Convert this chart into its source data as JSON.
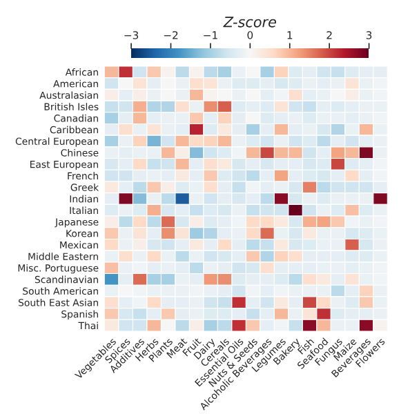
{
  "chart_data": {
    "type": "heatmap",
    "clabel": "Z-score",
    "clim": [
      -3,
      3
    ],
    "cticks": [
      {
        "value": -3,
        "label": "−3"
      },
      {
        "value": -2,
        "label": "−2"
      },
      {
        "value": -1,
        "label": "−1"
      },
      0,
      1,
      2,
      3
    ],
    "categories": [
      "Vegetables",
      "Spices",
      "Additives",
      "Herbs",
      "Plants",
      "Meat",
      "Fruit",
      "Dairy",
      "Cereals",
      "Essential Oils",
      "Nuts & Seeds",
      "Alcoholic Beverages",
      "Legumes",
      "Bakery",
      "Fish",
      "Seafood",
      "Fungus",
      "Maize",
      "Beverages",
      "Flowers"
    ],
    "y_categories": [
      "African",
      "American",
      "Australasian",
      "British Isles",
      "Canadian",
      "Caribbean",
      "Central European",
      "Chinese",
      "East European",
      "French",
      "Greek",
      "Indian",
      "Italian",
      "Japanese",
      "Korean",
      "Mexican",
      "Middle Eastern",
      "Misc. Portuguese",
      "Scandinavian",
      "South American",
      "South East Asian",
      "Spanish",
      "Thai"
    ],
    "cells": [
      [
        1.0,
        2.2,
        -0.6,
        0.8,
        0.1,
        -0.8,
        0.1,
        -0.8,
        -1.0,
        -0.2,
        0,
        -1.0,
        0.7,
        -0.4,
        -0.3,
        -0.6,
        -0.7,
        -0.4,
        -0.3,
        -0.3
      ],
      [
        -0.6,
        0,
        0.4,
        -0.3,
        0,
        -0.2,
        0.5,
        0.4,
        -0.2,
        -0.4,
        -0.4,
        -0.3,
        -0.5,
        -0.4,
        -0.2,
        -0.3,
        -0.2,
        0.4,
        -0.2,
        -0.1
      ],
      [
        0.2,
        -0.3,
        0.2,
        -0.2,
        0,
        -0.2,
        1.0,
        0.1,
        0,
        -0.2,
        0,
        -0.3,
        -0.1,
        0.5,
        -0.3,
        -0.2,
        0,
        0.2,
        -0.2,
        -0.1
      ],
      [
        -0.7,
        -0.6,
        1.1,
        -0.9,
        -0.9,
        0.5,
        -0.2,
        1.4,
        1.8,
        -0.4,
        -0.3,
        -0.4,
        0.4,
        -0.6,
        -0.7,
        -0.3,
        -0.4,
        -0.3,
        -0.2,
        -0.2
      ],
      [
        -1.0,
        -0.3,
        1.0,
        -0.3,
        -0.2,
        -0.2,
        0.8,
        -0.3,
        0.7,
        -0.3,
        0,
        -0.4,
        -0.3,
        -0.2,
        -0.4,
        -0.2,
        -0.2,
        -0.3,
        -0.2,
        -0.1
      ],
      [
        -0.3,
        0.5,
        -0.2,
        0.4,
        -0.2,
        -0.3,
        2.3,
        -0.4,
        0.3,
        -0.3,
        -1.0,
        -0.3,
        1.0,
        -0.3,
        -0.2,
        -0.5,
        -0.9,
        -0.2,
        1.0,
        -0.2
      ],
      [
        -1.0,
        -0.2,
        0.7,
        -1.4,
        -0.6,
        1.0,
        0.6,
        0.7,
        1.0,
        -0.2,
        -0.4,
        -0.6,
        -0.2,
        -0.6,
        -0.4,
        -0.8,
        -0.3,
        -0.6,
        -0.3,
        -0.2
      ],
      [
        -0.2,
        -0.3,
        -0.2,
        -0.2,
        1.0,
        0.2,
        -1.3,
        -0.6,
        -0.4,
        -0.1,
        1.0,
        2.0,
        1.0,
        1.0,
        -0.6,
        -0.3,
        1.2,
        1.0,
        2.8,
        -0.2
      ],
      [
        -0.5,
        -0.3,
        0.6,
        -0.7,
        -0.6,
        1.0,
        -0.3,
        0.5,
        0.3,
        -0.5,
        -0.3,
        -0.5,
        -0.3,
        -0.3,
        -0.5,
        -0.4,
        2.0,
        -0.4,
        -0.3,
        -0.1
      ],
      [
        -0.6,
        -0.6,
        -0.3,
        -0.2,
        -0.3,
        0.3,
        -0.3,
        0.8,
        -0.4,
        -0.6,
        -0.8,
        -0.3,
        1.2,
        -0.3,
        -0.4,
        -0.5,
        -0.3,
        0.6,
        -0.3,
        -0.1
      ],
      [
        0.3,
        -0.3,
        -0.8,
        0.8,
        0.2,
        -0.4,
        -0.2,
        0.5,
        -0.3,
        -0.7,
        -0.1,
        -0.3,
        -0.2,
        -0.5,
        1.5,
        -0.8,
        -0.6,
        -0.6,
        -0.6,
        -0.3
      ],
      [
        -0.3,
        2.8,
        -1.3,
        -0.2,
        -0.8,
        -2.5,
        -0.2,
        -0.6,
        -0.3,
        -0.5,
        -0.3,
        -0.8,
        2.7,
        -0.5,
        -0.2,
        -0.4,
        -0.2,
        -0.2,
        -0.2,
        2.8
      ],
      [
        -0.4,
        -0.2,
        -0.4,
        1.1,
        -0.5,
        -0.3,
        -0.7,
        -0.4,
        -0.5,
        -0.2,
        -0.7,
        -0.6,
        -0.6,
        3.0,
        -0.6,
        -0.2,
        -0.4,
        0.9,
        -0.4,
        -0.2
      ],
      [
        0.2,
        -0.8,
        0.6,
        -0.8,
        1.7,
        -0.5,
        0.2,
        -0.4,
        -0.3,
        -0.1,
        0.6,
        0.6,
        0.3,
        -0.5,
        1.1,
        1.2,
        0.8,
        -0.1,
        -0.2,
        -0.1
      ],
      [
        0.8,
        -0.2,
        0.4,
        -0.3,
        1.4,
        0.4,
        -1.1,
        -0.9,
        -0.3,
        -0.2,
        0.6,
        1.7,
        -0.2,
        -0.5,
        0.3,
        -0.2,
        -0.2,
        -0.5,
        -0.4,
        -0.2
      ],
      [
        0.6,
        -0.2,
        0.2,
        -0.5,
        -0.6,
        -0.3,
        0.3,
        -0.3,
        0.6,
        -0.3,
        -0.8,
        -0.7,
        0.3,
        -0.5,
        -0.4,
        -0.2,
        -0.2,
        1.8,
        -0.5,
        -0.2
      ],
      [
        -0.2,
        0.5,
        -0.2,
        0.6,
        -0.2,
        -0.8,
        -0.2,
        -0.6,
        -0.5,
        -0.3,
        0.8,
        -0.9,
        0.7,
        0.5,
        -0.3,
        -0.3,
        -0.3,
        -0.4,
        -0.4,
        -0.2
      ],
      [
        0.9,
        -0.2,
        -0.1,
        -0.3,
        -0.2,
        -0.3,
        -0.8,
        -0.2,
        -0.3,
        -0.6,
        -0.5,
        0.5,
        -0.3,
        -0.3,
        -0.3,
        -0.2,
        -0.2,
        -0.3,
        -0.2,
        -0.1
      ],
      [
        -1.8,
        -0.3,
        1.7,
        -1.0,
        -1.0,
        -0.2,
        -0.3,
        1.3,
        1.4,
        -0.4,
        -0.3,
        -0.3,
        -0.4,
        -0.8,
        0.5,
        0.3,
        -0.3,
        0.4,
        -0.2,
        -0.1
      ],
      [
        -0.2,
        0,
        -0.1,
        -0.2,
        -0.2,
        -0.2,
        -0.1,
        -0.2,
        -0.3,
        -0.6,
        -0.1,
        -0.3,
        -0.1,
        -0.2,
        -0.2,
        -0.2,
        -0.8,
        -0.3,
        0.7,
        -0.2
      ],
      [
        0.5,
        -0.3,
        -0.1,
        0.6,
        -0.3,
        -0.3,
        -0.2,
        -0.6,
        -0.7,
        2.2,
        -0.3,
        -0.6,
        0.3,
        -0.3,
        2.0,
        0.6,
        -0.2,
        -0.4,
        0.8,
        -0.2
      ],
      [
        0.8,
        -0.5,
        -0.7,
        -0.3,
        0.8,
        -0.3,
        -0.2,
        -0.4,
        -0.4,
        -0.3,
        -0.7,
        -0.3,
        1.0,
        -0.2,
        0.4,
        2.2,
        -0.4,
        -0.3,
        -0.3,
        -0.2
      ],
      [
        0.3,
        -0.6,
        -0.6,
        1.0,
        0,
        -0.8,
        0.2,
        -1.0,
        -0.8,
        2.2,
        0.8,
        -0.3,
        -0.1,
        -0.7,
        2.7,
        1.0,
        -0.2,
        -0.2,
        2.7,
        0.1
      ]
    ]
  }
}
